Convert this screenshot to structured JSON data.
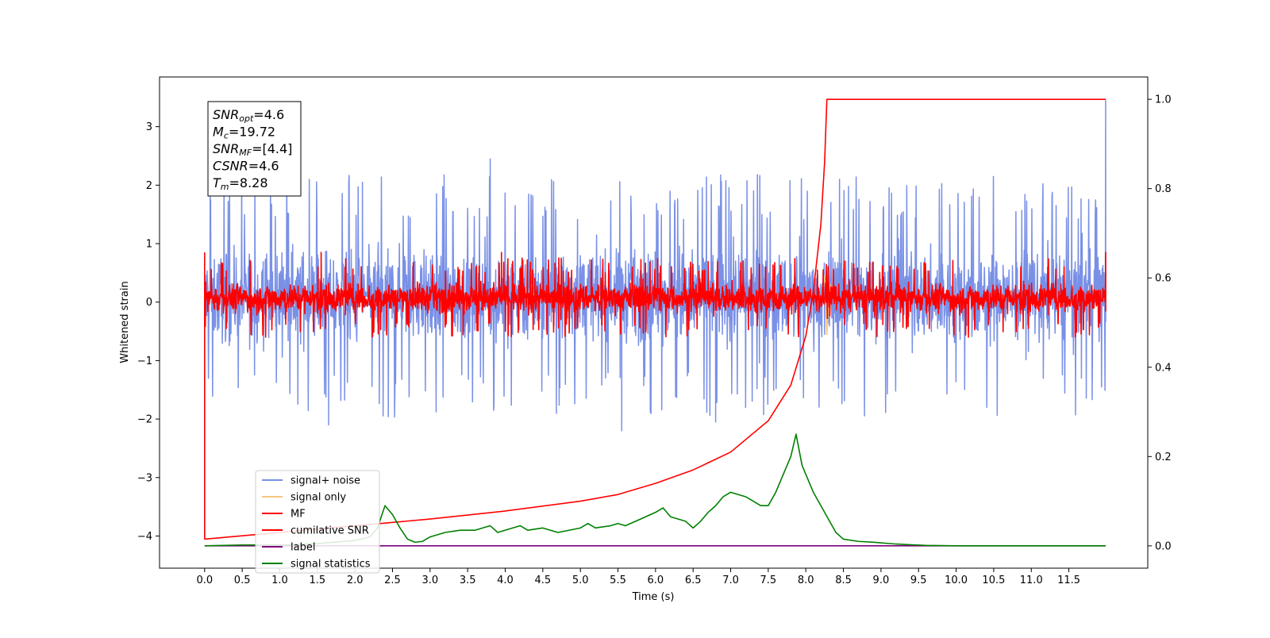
{
  "info_box": {
    "lines": [
      {
        "sym": "SNR",
        "sub": "opt",
        "rest": "=4.6"
      },
      {
        "sym": "M",
        "sub": "c",
        "rest": "=19.72"
      },
      {
        "sym": "SNR",
        "sub": "MF",
        "rest": "=[4.4]"
      },
      {
        "sym": "CSNR",
        "sub": "",
        "rest": "=4.6"
      },
      {
        "sym": "T",
        "sub": "m",
        "rest": "=8.28"
      }
    ]
  },
  "colors": {
    "signal_noise": "#7990e6",
    "signal_only": "#f5c77e",
    "mf": "#ff0000",
    "cumulative_snr": "#ff0000",
    "label": "#800080",
    "signal_statistics": "#008000"
  },
  "chart_data": {
    "type": "line",
    "xlabel": "Time (s)",
    "ylabel": "Whitened strain",
    "y2label": "",
    "xlim": [
      -0.6,
      12.55
    ],
    "ylim": [
      -4.55,
      3.85
    ],
    "y2lim": [
      -0.05,
      1.05
    ],
    "xticks": [
      0.0,
      0.5,
      1.0,
      1.5,
      2.0,
      2.5,
      3.0,
      3.5,
      4.0,
      4.5,
      5.0,
      5.5,
      6.0,
      6.5,
      7.0,
      7.5,
      8.0,
      8.5,
      9.0,
      9.5,
      10.0,
      10.5,
      11.0,
      11.5
    ],
    "xtick_labels": [
      "0.0",
      "0.5",
      "1.0",
      "1.5",
      "2.0",
      "2.5",
      "3.0",
      "3.5",
      "4.0",
      "4.5",
      "5.0",
      "5.5",
      "6.0",
      "6.5",
      "7.0",
      "7.5",
      "8.0",
      "8.5",
      "9.0",
      "9.5",
      "10.0",
      "10.5",
      "11.0",
      "11.5"
    ],
    "yticks": [
      -4,
      -3,
      -2,
      -1,
      0,
      1,
      2,
      3
    ],
    "ytick_labels": [
      "−4",
      "−3",
      "−2",
      "−1",
      "0",
      "1",
      "2",
      "3"
    ],
    "y2ticks": [
      0.0,
      0.2,
      0.4,
      0.6,
      0.8,
      1.0
    ],
    "y2tick_labels": [
      "0.0",
      "0.2",
      "0.4",
      "0.6",
      "0.8",
      "1.0"
    ],
    "legend_position": "lower-left",
    "legend": [
      "signal+ noise",
      "signal only",
      "MF",
      "cumilative SNR",
      "label",
      "signal statistics"
    ],
    "series": [
      {
        "name": "signal+ noise",
        "axis": "left",
        "kind": "noise",
        "x_range": [
          0.0,
          11.99
        ],
        "envelope": [
          -1.2,
          1.4
        ],
        "outliers": [
          [
            0.0,
            -4.05
          ],
          [
            0.08,
            1.75
          ],
          [
            1.65,
            -2.1
          ],
          [
            2.1,
            2.05
          ],
          [
            3.8,
            2.45
          ],
          [
            5.55,
            -2.2
          ],
          [
            6.8,
            -2.05
          ],
          [
            8.25,
            -0.55
          ],
          [
            11.99,
            3.45
          ]
        ]
      },
      {
        "name": "signal only",
        "axis": "left",
        "kind": "burst",
        "points": [
          [
            8.2,
            0.0
          ],
          [
            8.25,
            0.45
          ],
          [
            8.28,
            -0.55
          ],
          [
            8.32,
            0.3
          ],
          [
            8.35,
            0.0
          ]
        ]
      },
      {
        "name": "MF",
        "axis": "left",
        "kind": "noise",
        "x_range": [
          0.0,
          11.99
        ],
        "envelope": [
          -0.35,
          0.5
        ],
        "outliers": [
          [
            0.0,
            0.85
          ],
          [
            0.0,
            -4.05
          ],
          [
            1.55,
            0.85
          ],
          [
            3.95,
            0.85
          ],
          [
            11.99,
            0.85
          ]
        ]
      },
      {
        "name": "cumilative SNR",
        "axis": "right",
        "points": [
          [
            0.0,
            0.015
          ],
          [
            1.0,
            0.03
          ],
          [
            2.0,
            0.045
          ],
          [
            3.0,
            0.06
          ],
          [
            4.0,
            0.078
          ],
          [
            5.0,
            0.1
          ],
          [
            5.5,
            0.115
          ],
          [
            6.0,
            0.14
          ],
          [
            6.5,
            0.17
          ],
          [
            7.0,
            0.21
          ],
          [
            7.5,
            0.28
          ],
          [
            7.8,
            0.36
          ],
          [
            8.0,
            0.47
          ],
          [
            8.1,
            0.57
          ],
          [
            8.2,
            0.72
          ],
          [
            8.25,
            0.86
          ],
          [
            8.28,
            1.0
          ],
          [
            11.99,
            1.0
          ]
        ]
      },
      {
        "name": "label",
        "axis": "right",
        "points": [
          [
            0.0,
            0.0
          ],
          [
            11.99,
            0.0
          ]
        ]
      },
      {
        "name": "signal statistics",
        "axis": "right",
        "points": [
          [
            0.0,
            0.0
          ],
          [
            0.5,
            0.002
          ],
          [
            1.0,
            0.002
          ],
          [
            1.5,
            0.005
          ],
          [
            2.0,
            0.012
          ],
          [
            2.2,
            0.02
          ],
          [
            2.3,
            0.04
          ],
          [
            2.4,
            0.09
          ],
          [
            2.5,
            0.07
          ],
          [
            2.6,
            0.04
          ],
          [
            2.7,
            0.015
          ],
          [
            2.8,
            0.008
          ],
          [
            2.9,
            0.01
          ],
          [
            3.0,
            0.02
          ],
          [
            3.2,
            0.03
          ],
          [
            3.4,
            0.035
          ],
          [
            3.6,
            0.035
          ],
          [
            3.8,
            0.045
          ],
          [
            3.9,
            0.03
          ],
          [
            4.0,
            0.035
          ],
          [
            4.2,
            0.045
          ],
          [
            4.3,
            0.035
          ],
          [
            4.5,
            0.04
          ],
          [
            4.7,
            0.03
          ],
          [
            5.0,
            0.04
          ],
          [
            5.1,
            0.05
          ],
          [
            5.2,
            0.04
          ],
          [
            5.4,
            0.045
          ],
          [
            5.5,
            0.05
          ],
          [
            5.6,
            0.045
          ],
          [
            5.8,
            0.06
          ],
          [
            6.0,
            0.075
          ],
          [
            6.1,
            0.085
          ],
          [
            6.2,
            0.065
          ],
          [
            6.4,
            0.055
          ],
          [
            6.5,
            0.04
          ],
          [
            6.6,
            0.055
          ],
          [
            6.7,
            0.075
          ],
          [
            6.8,
            0.09
          ],
          [
            6.9,
            0.11
          ],
          [
            7.0,
            0.12
          ],
          [
            7.2,
            0.11
          ],
          [
            7.4,
            0.09
          ],
          [
            7.5,
            0.09
          ],
          [
            7.6,
            0.12
          ],
          [
            7.7,
            0.16
          ],
          [
            7.8,
            0.2
          ],
          [
            7.87,
            0.25
          ],
          [
            7.95,
            0.18
          ],
          [
            8.1,
            0.12
          ],
          [
            8.2,
            0.09
          ],
          [
            8.3,
            0.06
          ],
          [
            8.4,
            0.03
          ],
          [
            8.5,
            0.015
          ],
          [
            8.7,
            0.01
          ],
          [
            8.9,
            0.008
          ],
          [
            9.2,
            0.004
          ],
          [
            9.6,
            0.001
          ],
          [
            10.0,
            0.0
          ],
          [
            11.99,
            0.0
          ]
        ]
      }
    ]
  }
}
